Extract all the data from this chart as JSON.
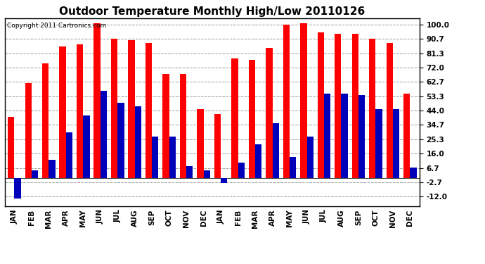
{
  "title": "Outdoor Temperature Monthly High/Low 20110126",
  "copyright_text": "Copyright 2011 Cartronics.com",
  "months": [
    "JAN",
    "FEB",
    "MAR",
    "APR",
    "MAY",
    "JUN",
    "JUL",
    "AUG",
    "SEP",
    "OCT",
    "NOV",
    "DEC",
    "JAN",
    "FEB",
    "MAR",
    "APR",
    "MAY",
    "JUN",
    "JUL",
    "AUG",
    "SEP",
    "OCT",
    "NOV",
    "DEC"
  ],
  "highs_y1": [
    40,
    62,
    75,
    86,
    87,
    101,
    91,
    90,
    88,
    68,
    68,
    45
  ],
  "lows_y1": [
    -13,
    5,
    12,
    30,
    41,
    57,
    49,
    47,
    27,
    27,
    8,
    5
  ],
  "highs_y2": [
    42,
    78,
    77,
    85,
    100,
    101,
    95,
    94,
    94,
    91,
    88,
    55
  ],
  "lows_y2": [
    -3,
    10,
    22,
    36,
    14,
    27,
    55,
    55,
    54,
    45,
    45,
    7
  ],
  "yticks": [
    -12.0,
    -2.7,
    6.7,
    16.0,
    25.3,
    34.7,
    44.0,
    53.3,
    62.7,
    72.0,
    81.3,
    90.7,
    100.0
  ],
  "ylim": [
    -18,
    104
  ],
  "high_color": "#ff0000",
  "low_color": "#0000bb",
  "bg_color": "#ffffff",
  "grid_color": "#999999",
  "title_fontsize": 11,
  "tick_fontsize": 7.5,
  "copyright_fontsize": 6.5
}
